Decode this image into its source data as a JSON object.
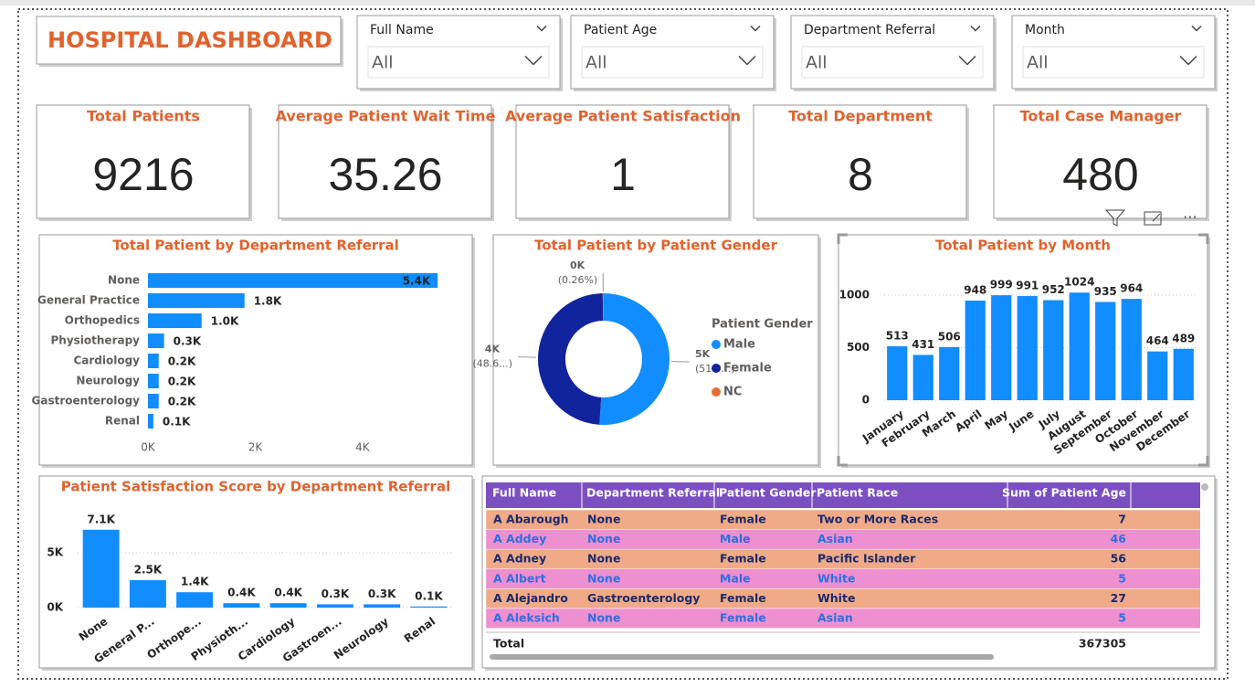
{
  "header": {
    "title": "HOSPITAL DASHBOARD"
  },
  "filters": [
    {
      "label": "Full Name",
      "value": "All"
    },
    {
      "label": "Patient Age",
      "value": "All"
    },
    {
      "label": "Department Referral",
      "value": "All"
    },
    {
      "label": "Month",
      "value": "All"
    }
  ],
  "kpis": [
    {
      "title": "Total Patients",
      "value": 9216
    },
    {
      "title": "Average Patient Wait Time",
      "value": 35.26
    },
    {
      "title": "Average Patient Satisfaction",
      "value": 1
    },
    {
      "title": "Total Department",
      "value": 8
    },
    {
      "title": "Total Case Manager",
      "value": 480
    }
  ],
  "chart_data": [
    {
      "type": "barh",
      "title": "Total Patient by Department Referral",
      "categories": [
        "None",
        "General Practice",
        "Orthopedics",
        "Physiotherapy",
        "Cardiology",
        "Neurology",
        "Gastroenterology",
        "Renal"
      ],
      "values": [
        5400,
        1800,
        1000,
        300,
        200,
        200,
        200,
        100
      ],
      "value_labels": [
        "5.4K",
        "1.8K",
        "1.0K",
        "0.3K",
        "0.2K",
        "0.2K",
        "0.2K",
        "0.1K"
      ],
      "color": "#118DFF",
      "xlim": [
        0,
        5500
      ],
      "xticks": [
        {
          "value": 0,
          "label": "0K"
        },
        {
          "value": 2000,
          "label": "2K"
        },
        {
          "value": 4000,
          "label": "4K"
        }
      ],
      "grid": false
    },
    {
      "type": "donut",
      "title": "Total Patient by Patient Gender",
      "legend_title": "Patient Gender",
      "series": [
        {
          "name": "Male",
          "color": "#118DFF",
          "values": [
            4705
          ],
          "value_labels": [
            "5K"
          ],
          "percent_labels": [
            "(51.0...)"
          ]
        },
        {
          "name": "Female",
          "color": "#12239E",
          "values": [
            4487
          ],
          "value_labels": [
            "4K"
          ],
          "percent_labels": [
            "(48.6...)"
          ]
        },
        {
          "name": "NC",
          "color": "#E66C37",
          "values": [
            24
          ],
          "value_labels": [
            "0K"
          ],
          "percent_labels": [
            "(0.26%)"
          ]
        }
      ],
      "legend": "right"
    },
    {
      "type": "bar",
      "title": "Total Patient by Month",
      "categories": [
        "January",
        "February",
        "March",
        "April",
        "May",
        "June",
        "July",
        "August",
        "September",
        "October",
        "November",
        "December"
      ],
      "values": [
        513,
        431,
        506,
        948,
        999,
        991,
        952,
        1024,
        935,
        964,
        464,
        489
      ],
      "color": "#118DFF",
      "ylim": [
        0,
        1200
      ],
      "yticks": [
        0,
        500,
        1000
      ],
      "grid": true
    },
    {
      "type": "bar",
      "title": "Patient Satisfaction Score by Department Referral",
      "categories": [
        "None",
        "General P...",
        "Orthope...",
        "Physioth...",
        "Cardiology",
        "Gastroen...",
        "Neurology",
        "Renal"
      ],
      "values": [
        7100,
        2500,
        1400,
        400,
        400,
        300,
        300,
        100
      ],
      "value_labels": [
        "7.1K",
        "2.5K",
        "1.4K",
        "0.4K",
        "0.4K",
        "0.3K",
        "0.3K",
        "0.1K"
      ],
      "color": "#118DFF",
      "ylim": [
        0,
        8000
      ],
      "yticks": [
        {
          "value": 0,
          "label": "0K"
        },
        {
          "value": 5000,
          "label": "5K"
        }
      ],
      "grid": true
    }
  ],
  "table": {
    "columns": [
      "Full Name",
      "Department Referral",
      "Patient Gender",
      "Patient Race",
      "Sum of Patient Age",
      "Sum of Pati"
    ],
    "rows": [
      [
        "A Abarough",
        "None",
        "Female",
        "Two or More Races",
        7
      ],
      [
        "A Addey",
        "None",
        "Male",
        "Asian",
        46
      ],
      [
        "A Adney",
        "None",
        "Female",
        "Pacific Islander",
        56
      ],
      [
        "A Albert",
        "None",
        "Male",
        "White",
        5
      ],
      [
        "A Alejandro",
        "Gastroenterology",
        "Female",
        "White",
        27
      ],
      [
        "A Aleksich",
        "None",
        "Female",
        "Asian",
        5
      ]
    ],
    "total": [
      "Total",
      367305
    ]
  }
}
